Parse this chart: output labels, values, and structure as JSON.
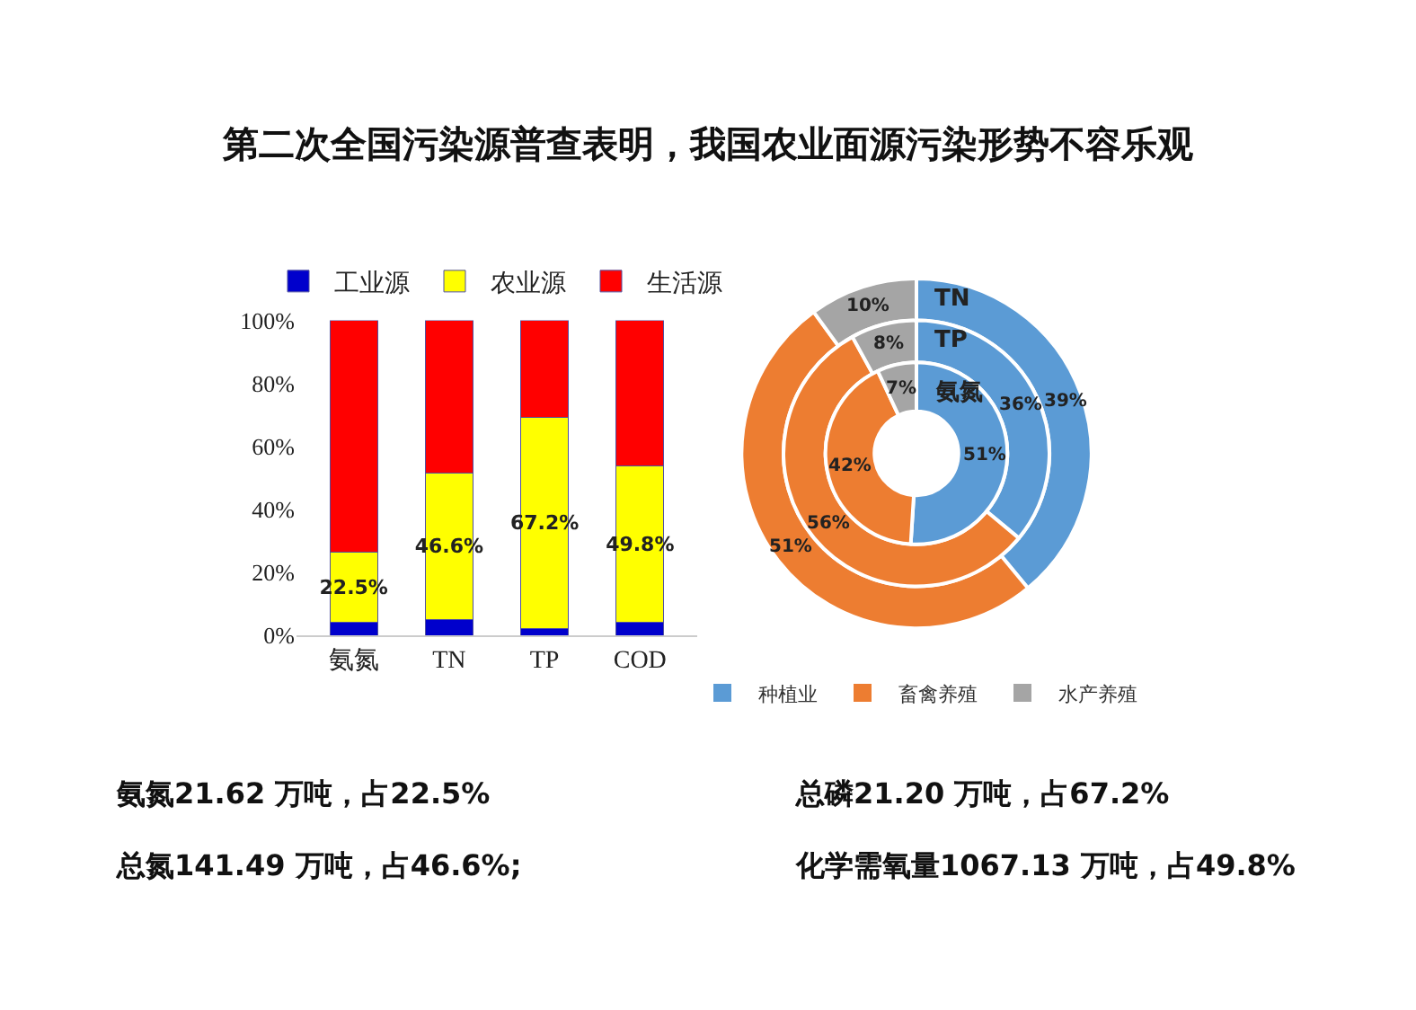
{
  "chart_data": [
    {
      "type": "bar",
      "title": "第二次全国污染源普查表明，我国农业面源污染形势不容乐观",
      "categories": [
        "氨氮",
        "TN",
        "TP",
        "COD"
      ],
      "stacked": true,
      "legend": "top",
      "series": [
        {
          "name": "工业源",
          "color": "#0000cc",
          "values": [
            4,
            5,
            2,
            4
          ]
        },
        {
          "name": "农业源",
          "color": "#ffff00",
          "values": [
            22.5,
            46.6,
            67.2,
            49.8
          ],
          "value_labels": [
            "22.5%",
            "46.6%",
            "67.2%",
            "49.8%"
          ]
        },
        {
          "name": "生活源",
          "color": "#ff0000",
          "values": [
            73.5,
            48.4,
            30.8,
            46.2
          ]
        }
      ],
      "ylim": [
        0,
        100
      ],
      "yticks": [
        {
          "value": 0,
          "label": "0%"
        },
        {
          "value": 20,
          "label": "20%"
        },
        {
          "value": 40,
          "label": "40%"
        },
        {
          "value": 60,
          "label": "60%"
        },
        {
          "value": 80,
          "label": "80%"
        },
        {
          "value": 100,
          "label": "100%"
        }
      ],
      "annotations": [
        "氨氮21.62 万吨，占22.5%",
        "总氮141.49 万吨，占46.6%;",
        "总磷21.20 万吨，占67.2%",
        "化学需氧量1067.13 万吨，占49.8%"
      ]
    },
    {
      "type": "donut",
      "categories": [
        "种植业",
        "畜禽养殖",
        "水产养殖"
      ],
      "colors": [
        "#5b9bd5",
        "#ed7d31",
        "#a5a5a5"
      ],
      "legend": "bottom",
      "series": [
        {
          "name": "TN",
          "values": [
            39,
            51,
            10
          ],
          "value_labels": [
            "39%",
            "51%",
            "10%"
          ]
        },
        {
          "name": "TP",
          "values": [
            36,
            56,
            8
          ],
          "value_labels": [
            "36%",
            "56%",
            "8%"
          ]
        },
        {
          "name": "氨氮",
          "values": [
            51,
            42,
            7
          ],
          "value_labels": [
            "51%",
            "42%",
            "7%"
          ]
        }
      ]
    }
  ]
}
